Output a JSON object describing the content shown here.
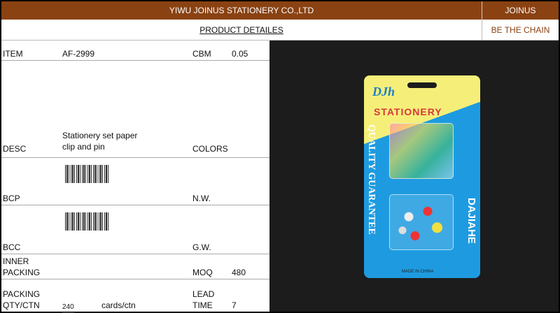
{
  "header": {
    "company": "YIWU JOINUS STATIONERY CO.,LTD",
    "brand": "JOINUS",
    "title": "PRODUCT DETAILES",
    "slogan": "BE THE CHAIN",
    "colors": {
      "header_bg": "#8a4212",
      "slogan": "#8a4212"
    }
  },
  "fields": {
    "item_label": "ITEM",
    "item_value": "AF-2999",
    "cbm_label": "CBM",
    "cbm_value": "0.05",
    "desc_label": "DESC",
    "desc_value_1": "Stationery set paper",
    "desc_value_2": "clip and pin",
    "colors_label": "COLORS",
    "bcp_label": "BCP",
    "nw_label": "N.W.",
    "bcc_label": "BCC",
    "gw_label": "G.W.",
    "inner_label_1": "INNER",
    "inner_label_2": "PACKING",
    "moq_label": "MOQ",
    "moq_value": "480",
    "packing_label_1": "PACKING",
    "packing_label_2": "QTY/CTN",
    "packing_qty": "240",
    "packing_unit": "cards/ctn",
    "lead_label_1": "LEAD",
    "lead_label_2": "TIME",
    "lead_value": "7"
  },
  "product_photo": {
    "logo": "DJh",
    "category": "STATIONERY",
    "side_left": "QUALITY GUARANTEE",
    "side_right": "DAJIAHE",
    "origin": "MADE IN CHINA"
  }
}
